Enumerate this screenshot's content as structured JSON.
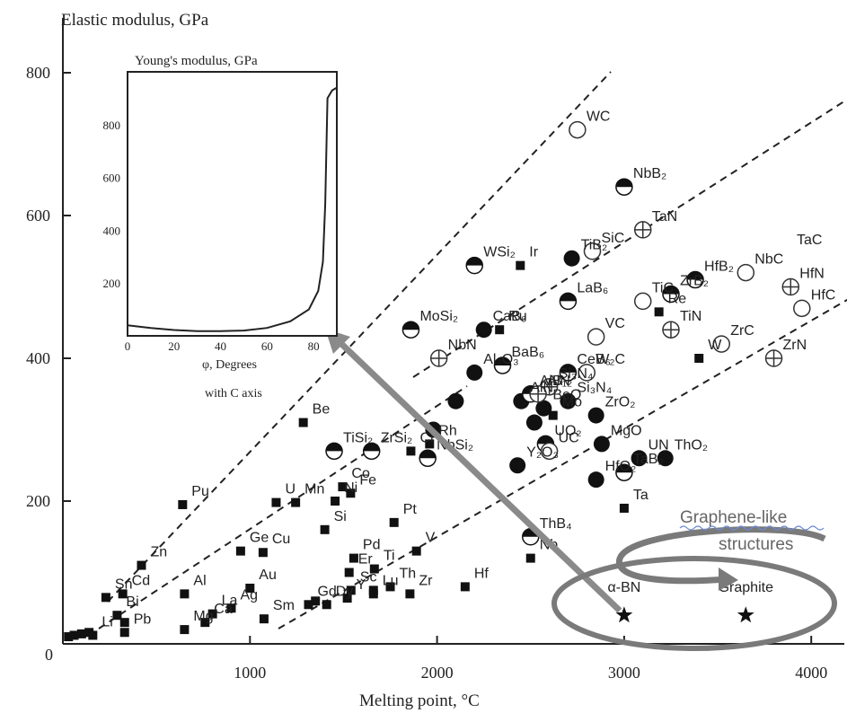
{
  "chart_data": [
    {
      "type": "scatter",
      "title": "",
      "ylabel": "Elastic modulus, GPa",
      "xlabel": "Melting point, °C",
      "xlim": [
        0,
        4200
      ],
      "ylim": [
        0,
        850
      ],
      "xticks": [
        {
          "v": 1000,
          "label": "1000"
        },
        {
          "v": 2000,
          "label": "2000"
        },
        {
          "v": 3000,
          "label": "3000"
        },
        {
          "v": 4000,
          "label": "4000"
        }
      ],
      "yticks": [
        {
          "v": 200,
          "label": "200"
        },
        {
          "v": 400,
          "label": "400"
        },
        {
          "v": 600,
          "label": "600"
        },
        {
          "v": 800,
          "label": "800"
        }
      ],
      "origin_label": "0",
      "series": [
        {
          "marker": "square",
          "points": [
            {
              "x": 30,
              "y": 10,
              "label": ""
            },
            {
              "x": 60,
              "y": 12,
              "label": ""
            },
            {
              "x": 100,
              "y": 14,
              "label": ""
            },
            {
              "x": 140,
              "y": 16,
              "label": ""
            },
            {
              "x": 160,
              "y": 12,
              "label": "Li"
            },
            {
              "x": 230,
              "y": 65,
              "label": "Sn"
            },
            {
              "x": 290,
              "y": 40,
              "label": "Bi"
            },
            {
              "x": 330,
              "y": 30,
              "label": ""
            },
            {
              "x": 320,
              "y": 70,
              "label": "Cd"
            },
            {
              "x": 330,
              "y": 16,
              "label": "Pb"
            },
            {
              "x": 420,
              "y": 110,
              "label": "Zn"
            },
            {
              "x": 650,
              "y": 70,
              "label": "Al"
            },
            {
              "x": 650,
              "y": 20,
              "label": "Mg"
            },
            {
              "x": 640,
              "y": 195,
              "label": "Pu"
            },
            {
              "x": 760,
              "y": 30,
              "label": "Ca"
            },
            {
              "x": 800,
              "y": 42,
              "label": "La"
            },
            {
              "x": 900,
              "y": 50,
              "label": "Ag"
            },
            {
              "x": 950,
              "y": 130,
              "label": "Ge"
            },
            {
              "x": 1000,
              "y": 78,
              "label": "Au"
            },
            {
              "x": 1070,
              "y": 128,
              "label": "Cu"
            },
            {
              "x": 1140,
              "y": 198,
              "label": "U"
            },
            {
              "x": 1244,
              "y": 198,
              "label": "Mn"
            },
            {
              "x": 1400,
              "y": 160,
              "label": "Si"
            },
            {
              "x": 1455,
              "y": 200,
              "label": "Ni"
            },
            {
              "x": 1495,
              "y": 220,
              "label": "Co"
            },
            {
              "x": 1538,
              "y": 211,
              "label": "Fe"
            },
            {
              "x": 1410,
              "y": 55,
              "label": "Dy"
            },
            {
              "x": 1520,
              "y": 64,
              "label": "Y"
            },
            {
              "x": 1530,
              "y": 100,
              "label": "Er"
            },
            {
              "x": 1540,
              "y": 75,
              "label": "Sc"
            },
            {
              "x": 1313,
              "y": 55,
              "label": "Gd"
            },
            {
              "x": 1350,
              "y": 60,
              "label": ""
            },
            {
              "x": 1075,
              "y": 35,
              "label": "Sm"
            },
            {
              "x": 1555,
              "y": 120,
              "label": "Pd"
            },
            {
              "x": 1665,
              "y": 105,
              "label": "Ti"
            },
            {
              "x": 1660,
              "y": 75,
              "label": ""
            },
            {
              "x": 1750,
              "y": 80,
              "label": "Th"
            },
            {
              "x": 1770,
              "y": 170,
              "label": "Pt"
            },
            {
              "x": 1660,
              "y": 70,
              "label": "Lu"
            },
            {
              "x": 1855,
              "y": 70,
              "label": "Zr"
            },
            {
              "x": 1890,
              "y": 130,
              "label": "V"
            },
            {
              "x": 1860,
              "y": 270,
              "label": "Cr"
            },
            {
              "x": 1285,
              "y": 310,
              "label": "Be"
            },
            {
              "x": 1960,
              "y": 280,
              "label": "Rh"
            },
            {
              "x": 2150,
              "y": 80,
              "label": "Hf"
            },
            {
              "x": 2445,
              "y": 530,
              "label": "Ir"
            },
            {
              "x": 2334,
              "y": 440,
              "label": "Ru"
            },
            {
              "x": 2620,
              "y": 320,
              "label": "Mo"
            },
            {
              "x": 2500,
              "y": 120,
              "label": "Nb"
            },
            {
              "x": 3000,
              "y": 190,
              "label": "Ta"
            },
            {
              "x": 3186,
              "y": 465,
              "label": "Re"
            },
            {
              "x": 3400,
              "y": 400,
              "label": "W"
            }
          ]
        },
        {
          "marker": "filled",
          "points": [
            {
              "x": 1980,
              "y": 300,
              "label": ""
            },
            {
              "x": 2100,
              "y": 340,
              "label": ""
            },
            {
              "x": 2200,
              "y": 380,
              "label": "Al₂O₃"
            },
            {
              "x": 2250,
              "y": 440,
              "label": "CaB₆"
            },
            {
              "x": 2450,
              "y": 340,
              "label": "AlN"
            },
            {
              "x": 2520,
              "y": 310,
              "label": ""
            },
            {
              "x": 2570,
              "y": 330,
              "label": "BeO"
            },
            {
              "x": 2700,
              "y": 340,
              "label": "Si₃N₄"
            },
            {
              "x": 2850,
              "y": 320,
              "label": "ZrO₂"
            },
            {
              "x": 2880,
              "y": 280,
              "label": "MgO"
            },
            {
              "x": 2850,
              "y": 230,
              "label": "HfO₂"
            },
            {
              "x": 2430,
              "y": 250,
              "label": "Y₂O₃"
            },
            {
              "x": 3220,
              "y": 260,
              "label": "ThO₂"
            },
            {
              "x": 3080,
              "y": 260,
              "label": "UN"
            },
            {
              "x": 2720,
              "y": 540,
              "label": "TiB₂"
            }
          ]
        },
        {
          "marker": "half",
          "points": [
            {
              "x": 2200,
              "y": 530,
              "label": "WSi₂"
            },
            {
              "x": 1860,
              "y": 440,
              "label": "MoSi₂"
            },
            {
              "x": 1450,
              "y": 270,
              "label": "TiSi₂"
            },
            {
              "x": 1650,
              "y": 270,
              "label": "ZrSi₂"
            },
            {
              "x": 1950,
              "y": 260,
              "label": "NbSi₂"
            },
            {
              "x": 2350,
              "y": 390,
              "label": "BaB₆"
            },
            {
              "x": 2500,
              "y": 350,
              "label": "AlB₁₂"
            },
            {
              "x": 2700,
              "y": 380,
              "label": "CeB₆"
            },
            {
              "x": 2700,
              "y": 480,
              "label": "LaB₆"
            },
            {
              "x": 3000,
              "y": 640,
              "label": "NbB₂"
            },
            {
              "x": 3250,
              "y": 490,
              "label": "ZrB₂"
            },
            {
              "x": 3380,
              "y": 510,
              "label": "HfB₂"
            },
            {
              "x": 3000,
              "y": 240,
              "label": "TaB₂"
            },
            {
              "x": 2500,
              "y": 150,
              "label": "ThB₄"
            },
            {
              "x": 2580,
              "y": 280,
              "label": "UO₂"
            }
          ]
        },
        {
          "marker": "open",
          "points": [
            {
              "x": 2750,
              "y": 720,
              "label": "WC"
            },
            {
              "x": 2830,
              "y": 550,
              "label": "SiC"
            },
            {
              "x": 3100,
              "y": 480,
              "label": "TiC"
            },
            {
              "x": 2850,
              "y": 430,
              "label": "VC"
            },
            {
              "x": 2800,
              "y": 380,
              "label": "W₂C"
            },
            {
              "x": 2600,
              "y": 270,
              "label": "UC"
            },
            {
              "x": 3520,
              "y": 420,
              "label": "ZrC"
            },
            {
              "x": 3650,
              "y": 520,
              "label": "NbC"
            },
            {
              "x": 3950,
              "y": 470,
              "label": "HfC"
            }
          ]
        },
        {
          "marker": "crossed",
          "points": [
            {
              "x": 3100,
              "y": 580,
              "label": "TaN"
            },
            {
              "x": 3250,
              "y": 440,
              "label": "TiN"
            },
            {
              "x": 3800,
              "y": 400,
              "label": "ZrN"
            },
            {
              "x": 2600,
              "y": 360,
              "label": "Si₃N₄"
            },
            {
              "x": 2540,
              "y": 350,
              "label": "AlN"
            },
            {
              "x": 2010,
              "y": 400,
              "label": "NbN"
            },
            {
              "x": 3890,
              "y": 500,
              "label": "HfN"
            }
          ]
        },
        {
          "marker": "star",
          "points": [
            {
              "x": 3000,
              "y": 40,
              "label": "α-BN"
            },
            {
              "x": 3650,
              "y": 40,
              "label": "Graphite"
            }
          ]
        }
      ],
      "extra_labels": [
        {
          "text": "TaC",
          "x": 3970,
          "y": 560
        }
      ],
      "annotations": [
        {
          "text": "Graphene-like",
          "kind": "title-line1"
        },
        {
          "text": "structures",
          "kind": "title-line2"
        }
      ]
    },
    {
      "type": "line",
      "title": "Young's modulus, GPa",
      "xlabel_line1": "φ, Degrees",
      "xlabel_line2": "with C axis",
      "xlim": [
        0,
        90
      ],
      "ylim": [
        0,
        1000
      ],
      "xticks": [
        {
          "v": 0,
          "label": "0"
        },
        {
          "v": 20,
          "label": "20"
        },
        {
          "v": 40,
          "label": "40"
        },
        {
          "v": 60,
          "label": "60"
        },
        {
          "v": 80,
          "label": "80"
        }
      ],
      "yticks": [
        {
          "v": 200,
          "label": "200"
        },
        {
          "v": 400,
          "label": "400"
        },
        {
          "v": 600,
          "label": "600"
        },
        {
          "v": 800,
          "label": "800"
        }
      ],
      "x": [
        0,
        10,
        20,
        30,
        40,
        50,
        60,
        70,
        78,
        82,
        84,
        85,
        86,
        88,
        90
      ],
      "y": [
        40,
        30,
        22,
        18,
        18,
        20,
        30,
        55,
        100,
        170,
        280,
        500,
        900,
        930,
        940
      ]
    }
  ]
}
